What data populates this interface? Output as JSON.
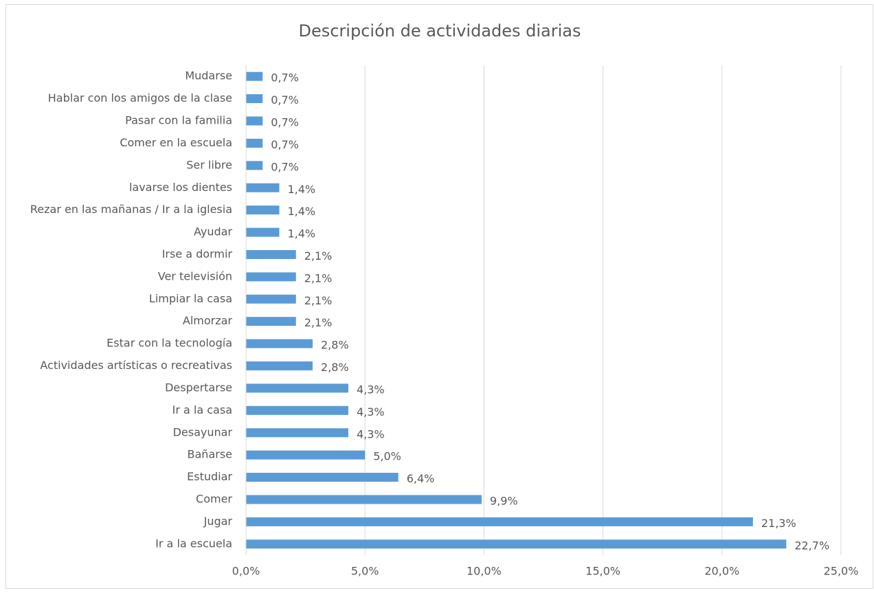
{
  "chart_data": {
    "type": "bar",
    "orientation": "horizontal",
    "title": "Descripción de actividades diarias",
    "categories": [
      "Mudarse",
      "Hablar con los amigos de la clase",
      "Pasar con la familia",
      "Comer en la escuela",
      "Ser libre",
      "lavarse los dientes",
      "Rezar en las mañanas / Ir a la iglesia",
      "Ayudar",
      "Irse a dormir",
      "Ver televisión",
      "Limpiar la casa",
      "Almorzar",
      "Estar con la tecnología",
      "Actividades artísticas o recreativas",
      "Despertarse",
      "Ir a la casa",
      "Desayunar",
      "Bañarse",
      "Estudiar",
      "Comer",
      "Jugar",
      "Ir a la escuela"
    ],
    "values": [
      0.7,
      0.7,
      0.7,
      0.7,
      0.7,
      1.4,
      1.4,
      1.4,
      2.1,
      2.1,
      2.1,
      2.1,
      2.8,
      2.8,
      4.3,
      4.3,
      4.3,
      5.0,
      6.4,
      9.9,
      21.3,
      22.7
    ],
    "value_labels": [
      "0,7%",
      "0,7%",
      "0,7%",
      "0,7%",
      "0,7%",
      "1,4%",
      "1,4%",
      "1,4%",
      "2,1%",
      "2,1%",
      "2,1%",
      "2,1%",
      "2,8%",
      "2,8%",
      "4,3%",
      "4,3%",
      "4,3%",
      "5,0%",
      "6,4%",
      "9,9%",
      "21,3%",
      "22,7%"
    ],
    "color": "#5b9bd5",
    "xlim": [
      0,
      25
    ],
    "xticks": [
      {
        "value": 0,
        "label": "0,0%"
      },
      {
        "value": 5,
        "label": "5,0%"
      },
      {
        "value": 10,
        "label": "10,0%"
      },
      {
        "value": 15,
        "label": "15,0%"
      },
      {
        "value": 20,
        "label": "20,0%"
      },
      {
        "value": 25,
        "label": "25,0%"
      }
    ],
    "grid": true
  }
}
